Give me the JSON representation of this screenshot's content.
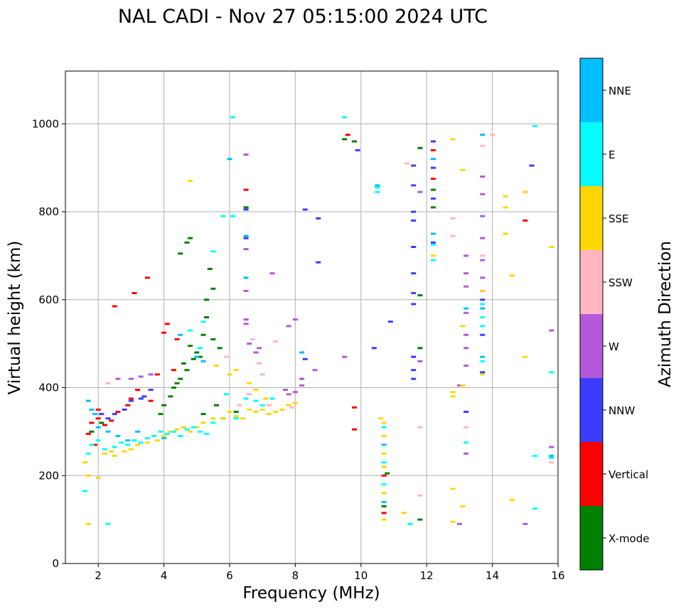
{
  "chart_data": {
    "type": "scatter",
    "title": "NAL CADI - Nov 27 05:15:00 2024 UTC",
    "xlabel": "Frequency (MHz)",
    "ylabel": "Virtual height (km)",
    "xlim": [
      1,
      16
    ],
    "ylim": [
      0,
      1120
    ],
    "xticks": [
      2,
      4,
      6,
      8,
      10,
      12,
      14,
      16
    ],
    "yticks": [
      0,
      200,
      400,
      600,
      800,
      1000
    ],
    "grid": true,
    "colorbar": {
      "label": "Azimuth Direction",
      "categories": [
        "X-mode",
        "Vertical",
        "NNW",
        "W",
        "SSW",
        "SSE",
        "E",
        "NNE"
      ],
      "colors": [
        "#008000",
        "#ff0000",
        "#3c3cff",
        "#b359d9",
        "#ffb6c1",
        "#ffd700",
        "#00ffff",
        "#00bfff"
      ]
    },
    "series": [
      {
        "name": "X-mode",
        "points": [
          [
            4.5,
            705
          ],
          [
            4.7,
            730
          ],
          [
            4.8,
            740
          ],
          [
            5.4,
            670
          ],
          [
            5.5,
            625
          ],
          [
            5.3,
            600
          ],
          [
            4.6,
            455
          ],
          [
            4.7,
            440
          ],
          [
            4.8,
            495
          ],
          [
            4.5,
            420
          ],
          [
            4.4,
            410
          ],
          [
            4.3,
            400
          ],
          [
            4.9,
            465
          ],
          [
            5.0,
            480
          ],
          [
            5.1,
            470
          ],
          [
            5.2,
            520
          ],
          [
            5.3,
            560
          ],
          [
            5.5,
            510
          ],
          [
            5.7,
            490
          ],
          [
            4.0,
            360
          ],
          [
            4.2,
            380
          ],
          [
            3.9,
            340
          ],
          [
            5.6,
            360
          ],
          [
            5.8,
            330
          ],
          [
            5.2,
            340
          ],
          [
            6.5,
            810
          ],
          [
            9.5,
            965
          ],
          [
            9.8,
            960
          ],
          [
            10.8,
            205
          ],
          [
            10.7,
            130
          ],
          [
            11.8,
            945
          ],
          [
            11.8,
            610
          ],
          [
            11.8,
            490
          ],
          [
            11.8,
            100
          ],
          [
            12.2,
            850
          ],
          [
            12.2,
            810
          ],
          [
            1.8,
            300
          ],
          [
            2.1,
            320
          ],
          [
            6.2,
            345
          ]
        ]
      },
      {
        "name": "Vertical",
        "points": [
          [
            3.5,
            650
          ],
          [
            3.1,
            615
          ],
          [
            2.5,
            585
          ],
          [
            4.1,
            545
          ],
          [
            4.0,
            525
          ],
          [
            4.4,
            510
          ],
          [
            3.8,
            430
          ],
          [
            4.3,
            440
          ],
          [
            3.2,
            395
          ],
          [
            3.0,
            375
          ],
          [
            2.9,
            360
          ],
          [
            2.6,
            345
          ],
          [
            2.4,
            325
          ],
          [
            2.2,
            315
          ],
          [
            2.0,
            330
          ],
          [
            1.8,
            320
          ],
          [
            1.7,
            295
          ],
          [
            1.9,
            270
          ],
          [
            2.0,
            350
          ],
          [
            3.6,
            370
          ],
          [
            9.6,
            975
          ],
          [
            9.8,
            355
          ],
          [
            9.8,
            305
          ],
          [
            10.7,
            115
          ],
          [
            10.7,
            200
          ],
          [
            15.0,
            780
          ],
          [
            12.2,
            940
          ],
          [
            12.2,
            875
          ],
          [
            6.5,
            850
          ]
        ]
      },
      {
        "name": "NNW",
        "points": [
          [
            3.4,
            380
          ],
          [
            3.6,
            395
          ],
          [
            3.3,
            375
          ],
          [
            3.0,
            370
          ],
          [
            2.8,
            350
          ],
          [
            2.5,
            340
          ],
          [
            2.3,
            330
          ],
          [
            2.1,
            340
          ],
          [
            6.5,
            805
          ],
          [
            6.5,
            740
          ],
          [
            8.3,
            805
          ],
          [
            8.7,
            785
          ],
          [
            8.7,
            685
          ],
          [
            8.3,
            465
          ],
          [
            11.6,
            905
          ],
          [
            11.6,
            860
          ],
          [
            11.6,
            800
          ],
          [
            11.6,
            780
          ],
          [
            11.6,
            720
          ],
          [
            11.6,
            660
          ],
          [
            11.6,
            615
          ],
          [
            11.6,
            590
          ],
          [
            11.6,
            470
          ],
          [
            11.6,
            440
          ],
          [
            11.6,
            420
          ],
          [
            12.2,
            960
          ],
          [
            12.2,
            900
          ],
          [
            12.2,
            830
          ],
          [
            12.2,
            730
          ],
          [
            13.7,
            600
          ],
          [
            13.7,
            520
          ],
          [
            13.7,
            435
          ],
          [
            15.2,
            905
          ],
          [
            10.4,
            490
          ],
          [
            10.9,
            550
          ],
          [
            13.2,
            345
          ],
          [
            9.9,
            940
          ]
        ]
      },
      {
        "name": "W",
        "points": [
          [
            6.5,
            715
          ],
          [
            6.5,
            555
          ],
          [
            6.5,
            545
          ],
          [
            6.5,
            620
          ],
          [
            6.6,
            500
          ],
          [
            6.8,
            480
          ],
          [
            6.9,
            490
          ],
          [
            7.3,
            660
          ],
          [
            7.8,
            540
          ],
          [
            8.0,
            555
          ],
          [
            8.2,
            420
          ],
          [
            8.2,
            405
          ],
          [
            8.6,
            440
          ],
          [
            8.0,
            390
          ],
          [
            7.8,
            385
          ],
          [
            7.7,
            395
          ],
          [
            2.6,
            420
          ],
          [
            3.0,
            420
          ],
          [
            3.3,
            425
          ],
          [
            3.6,
            430
          ],
          [
            11.8,
            845
          ],
          [
            11.8,
            460
          ],
          [
            13.0,
            405
          ],
          [
            13.2,
            700
          ],
          [
            13.2,
            660
          ],
          [
            13.2,
            630
          ],
          [
            13.2,
            570
          ],
          [
            13.2,
            520
          ],
          [
            13.2,
            490
          ],
          [
            13.2,
            450
          ],
          [
            13.2,
            250
          ],
          [
            13.7,
            880
          ],
          [
            13.7,
            840
          ],
          [
            13.7,
            790
          ],
          [
            13.7,
            740
          ],
          [
            13.7,
            690
          ],
          [
            13.7,
            650
          ],
          [
            13.7,
            620
          ],
          [
            15.8,
            530
          ],
          [
            15.8,
            265
          ],
          [
            15.0,
            90
          ],
          [
            13.0,
            90
          ],
          [
            6.5,
            930
          ],
          [
            9.5,
            470
          ]
        ]
      },
      {
        "name": "SSW",
        "points": [
          [
            6.7,
            510
          ],
          [
            6.9,
            455
          ],
          [
            7.4,
            505
          ],
          [
            7.0,
            430
          ],
          [
            6.6,
            385
          ],
          [
            6.3,
            360
          ],
          [
            7.2,
            360
          ],
          [
            5.9,
            470
          ],
          [
            11.4,
            910
          ],
          [
            11.8,
            310
          ],
          [
            11.8,
            155
          ],
          [
            12.8,
            785
          ],
          [
            12.8,
            745
          ],
          [
            13.2,
            310
          ],
          [
            14.0,
            975
          ],
          [
            13.7,
            950
          ],
          [
            13.7,
            700
          ],
          [
            15.8,
            230
          ],
          [
            7.9,
            355
          ],
          [
            2.3,
            410
          ]
        ]
      },
      {
        "name": "SSE",
        "points": [
          [
            1.7,
            90
          ],
          [
            1.6,
            230
          ],
          [
            1.7,
            200
          ],
          [
            2.0,
            195
          ],
          [
            2.2,
            250
          ],
          [
            2.4,
            255
          ],
          [
            2.5,
            245
          ],
          [
            2.8,
            255
          ],
          [
            3.0,
            260
          ],
          [
            3.2,
            270
          ],
          [
            3.5,
            275
          ],
          [
            3.8,
            280
          ],
          [
            4.0,
            290
          ],
          [
            4.2,
            300
          ],
          [
            4.4,
            305
          ],
          [
            4.6,
            310
          ],
          [
            4.8,
            300
          ],
          [
            5.0,
            310
          ],
          [
            5.2,
            320
          ],
          [
            5.5,
            330
          ],
          [
            5.8,
            330
          ],
          [
            6.0,
            345
          ],
          [
            6.2,
            335
          ],
          [
            6.4,
            330
          ],
          [
            6.6,
            350
          ],
          [
            6.8,
            345
          ],
          [
            7.0,
            350
          ],
          [
            7.2,
            340
          ],
          [
            7.4,
            345
          ],
          [
            7.6,
            350
          ],
          [
            7.8,
            360
          ],
          [
            8.0,
            365
          ],
          [
            5.6,
            450
          ],
          [
            6.0,
            430
          ],
          [
            6.2,
            440
          ],
          [
            6.6,
            410
          ],
          [
            6.8,
            395
          ],
          [
            7.1,
            375
          ],
          [
            4.8,
            870
          ],
          [
            10.7,
            320
          ],
          [
            10.7,
            290
          ],
          [
            10.7,
            250
          ],
          [
            10.7,
            220
          ],
          [
            10.7,
            160
          ],
          [
            10.7,
            100
          ],
          [
            11.3,
            115
          ],
          [
            12.2,
            700
          ],
          [
            12.8,
            965
          ],
          [
            12.8,
            390
          ],
          [
            12.8,
            380
          ],
          [
            12.8,
            170
          ],
          [
            12.8,
            95
          ],
          [
            13.1,
            895
          ],
          [
            13.1,
            540
          ],
          [
            13.1,
            405
          ],
          [
            13.1,
            130
          ],
          [
            13.7,
            620
          ],
          [
            13.7,
            430
          ],
          [
            14.4,
            835
          ],
          [
            14.4,
            810
          ],
          [
            14.4,
            750
          ],
          [
            14.6,
            655
          ],
          [
            14.6,
            145
          ],
          [
            15.0,
            845
          ],
          [
            15.0,
            470
          ],
          [
            15.8,
            720
          ],
          [
            10.6,
            330
          ]
        ]
      },
      {
        "name": "E",
        "points": [
          [
            1.6,
            165
          ],
          [
            1.7,
            250
          ],
          [
            1.8,
            270
          ],
          [
            2.0,
            280
          ],
          [
            2.2,
            260
          ],
          [
            2.5,
            265
          ],
          [
            2.7,
            275
          ],
          [
            2.9,
            270
          ],
          [
            3.1,
            280
          ],
          [
            3.3,
            275
          ],
          [
            3.5,
            285
          ],
          [
            3.7,
            290
          ],
          [
            3.9,
            300
          ],
          [
            4.1,
            295
          ],
          [
            4.3,
            300
          ],
          [
            4.5,
            290
          ],
          [
            4.7,
            305
          ],
          [
            4.9,
            310
          ],
          [
            5.1,
            300
          ],
          [
            5.3,
            295
          ],
          [
            5.5,
            320
          ],
          [
            5.9,
            385
          ],
          [
            6.2,
            330
          ],
          [
            6.5,
            375
          ],
          [
            6.8,
            370
          ],
          [
            7.0,
            360
          ],
          [
            7.3,
            375
          ],
          [
            5.2,
            550
          ],
          [
            5.1,
            490
          ],
          [
            5.5,
            710
          ],
          [
            4.8,
            530
          ],
          [
            5.8,
            790
          ],
          [
            6.1,
            790
          ],
          [
            6.1,
            1015
          ],
          [
            9.5,
            1015
          ],
          [
            10.5,
            855
          ],
          [
            10.5,
            845
          ],
          [
            10.7,
            310
          ],
          [
            10.7,
            230
          ],
          [
            10.7,
            180
          ],
          [
            11.5,
            90
          ],
          [
            12.2,
            725
          ],
          [
            12.2,
            690
          ],
          [
            13.7,
            590
          ],
          [
            13.7,
            560
          ],
          [
            13.7,
            540
          ],
          [
            13.7,
            460
          ],
          [
            13.2,
            275
          ],
          [
            15.3,
            995
          ],
          [
            15.3,
            245
          ],
          [
            15.3,
            125
          ],
          [
            15.8,
            435
          ],
          [
            15.8,
            240
          ],
          [
            2.3,
            90
          ]
        ]
      },
      {
        "name": "NNE",
        "points": [
          [
            1.7,
            370
          ],
          [
            1.8,
            350
          ],
          [
            1.9,
            340
          ],
          [
            2.0,
            310
          ],
          [
            2.3,
            300
          ],
          [
            2.6,
            290
          ],
          [
            2.9,
            280
          ],
          [
            3.2,
            300
          ],
          [
            4.0,
            285
          ],
          [
            4.5,
            520
          ],
          [
            5.0,
            470
          ],
          [
            5.2,
            460
          ],
          [
            6.0,
            920
          ],
          [
            6.5,
            650
          ],
          [
            6.5,
            745
          ],
          [
            8.2,
            480
          ],
          [
            10.5,
            860
          ],
          [
            10.7,
            270
          ],
          [
            10.7,
            140
          ],
          [
            12.2,
            920
          ],
          [
            12.2,
            750
          ],
          [
            13.7,
            975
          ],
          [
            13.7,
            580
          ],
          [
            13.7,
            470
          ],
          [
            13.2,
            580
          ],
          [
            15.8,
            245
          ]
        ]
      }
    ]
  }
}
